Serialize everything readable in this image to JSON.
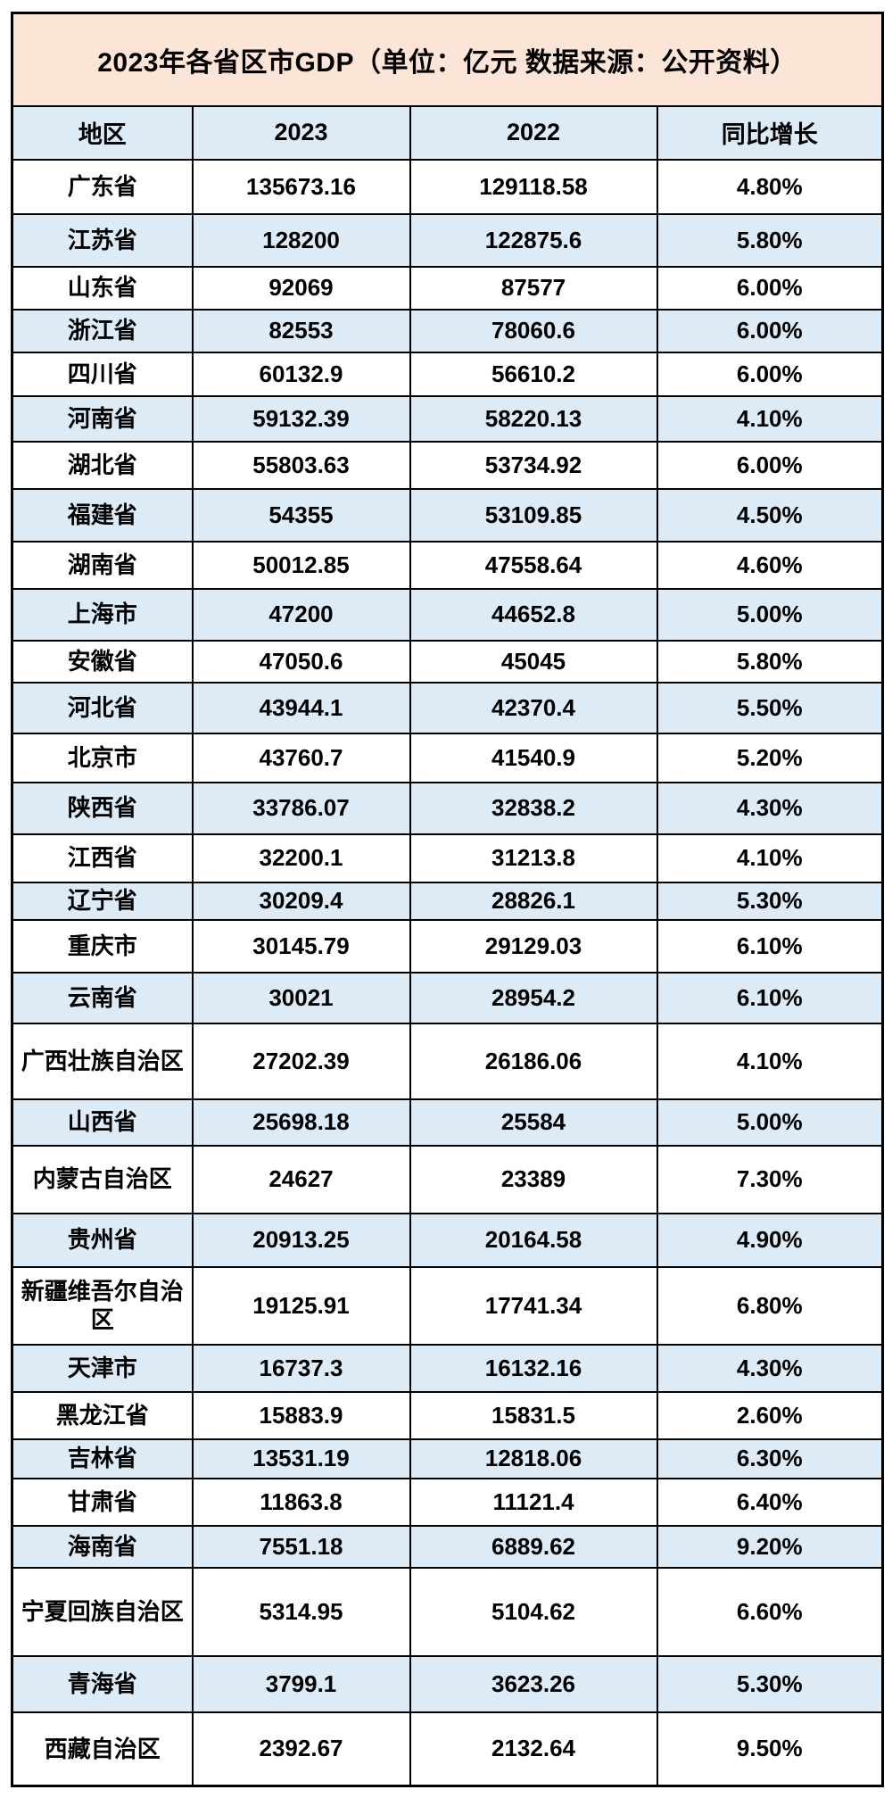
{
  "chart_data": {
    "type": "table",
    "title": "2023年各省区市GDP（单位：亿元 数据来源：公开资料）",
    "columns": [
      "地区",
      "2023",
      "2022",
      "同比增长"
    ],
    "rows": [
      [
        "广东省",
        "135673.16",
        "129118.58",
        "4.80%"
      ],
      [
        "江苏省",
        "128200",
        "122875.6",
        "5.80%"
      ],
      [
        "山东省",
        "92069",
        "87577",
        "6.00%"
      ],
      [
        "浙江省",
        "82553",
        "78060.6",
        "6.00%"
      ],
      [
        "四川省",
        "60132.9",
        "56610.2",
        "6.00%"
      ],
      [
        "河南省",
        "59132.39",
        "58220.13",
        "4.10%"
      ],
      [
        "湖北省",
        "55803.63",
        "53734.92",
        "6.00%"
      ],
      [
        "福建省",
        "54355",
        "53109.85",
        "4.50%"
      ],
      [
        "湖南省",
        "50012.85",
        "47558.64",
        "4.60%"
      ],
      [
        "上海市",
        "47200",
        "44652.8",
        "5.00%"
      ],
      [
        "安徽省",
        "47050.6",
        "45045",
        "5.80%"
      ],
      [
        "河北省",
        "43944.1",
        "42370.4",
        "5.50%"
      ],
      [
        "北京市",
        "43760.7",
        "41540.9",
        "5.20%"
      ],
      [
        "陕西省",
        "33786.07",
        "32838.2",
        "4.30%"
      ],
      [
        "江西省",
        "32200.1",
        "31213.8",
        "4.10%"
      ],
      [
        "辽宁省",
        "30209.4",
        "28826.1",
        "5.30%"
      ],
      [
        "重庆市",
        "30145.79",
        "29129.03",
        "6.10%"
      ],
      [
        "云南省",
        "30021",
        "28954.2",
        "6.10%"
      ],
      [
        "广西壮族自治区",
        "27202.39",
        "26186.06",
        "4.10%"
      ],
      [
        "山西省",
        "25698.18",
        "25584",
        "5.00%"
      ],
      [
        "内蒙古自治区",
        "24627",
        "23389",
        "7.30%"
      ],
      [
        "贵州省",
        "20913.25",
        "20164.58",
        "4.90%"
      ],
      [
        "新疆维吾尔自治区",
        "19125.91",
        "17741.34",
        "6.80%"
      ],
      [
        "天津市",
        "16737.3",
        "16132.16",
        "4.30%"
      ],
      [
        "黑龙江省",
        "15883.9",
        "15831.5",
        "2.60%"
      ],
      [
        "吉林省",
        "13531.19",
        "12818.06",
        "6.30%"
      ],
      [
        "甘肃省",
        "11863.8",
        "11121.4",
        "6.40%"
      ],
      [
        "海南省",
        "7551.18",
        "6889.62",
        "9.20%"
      ],
      [
        "宁夏回族自治区",
        "5314.95",
        "5104.62",
        "6.60%"
      ],
      [
        "青海省",
        "3799.1",
        "3623.26",
        "5.30%"
      ],
      [
        "西藏自治区",
        "2392.67",
        "2132.64",
        "9.50%"
      ]
    ],
    "layout_hints": {
      "legend": "none",
      "grid": "full black cell borders",
      "row_striping": "alternating, first data row white"
    }
  },
  "colors": {
    "title_background": "#FCE4D6",
    "header_background": "#DDEBF7",
    "row_background": "#FFFFFF",
    "row_alt_background": "#DDEBF7",
    "border": "#000000",
    "text": "#000000"
  }
}
